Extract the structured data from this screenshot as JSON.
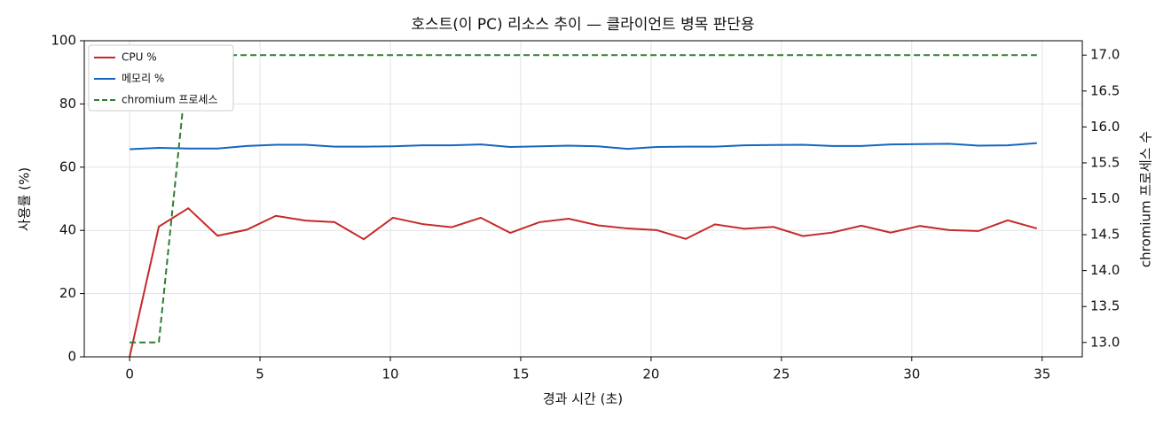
{
  "chart_data": {
    "type": "line",
    "title": "호스트(이 PC) 리소스 추이 — 클라이언트 병목 판단용",
    "xlabel": "경과 시간 (초)",
    "ylabel": "사용률 (%)",
    "y2label": "chromium 프로세스 수",
    "x": [
      0,
      1.12,
      2.25,
      3.37,
      4.49,
      5.61,
      6.74,
      7.86,
      8.98,
      10.1,
      11.23,
      12.35,
      13.47,
      14.6,
      15.72,
      16.84,
      17.96,
      19.09,
      20.21,
      21.33,
      22.45,
      23.58,
      24.7,
      25.82,
      26.94,
      28.07,
      29.19,
      30.31,
      31.43,
      32.56,
      33.68,
      34.8
    ],
    "series": [
      {
        "name": "CPU %",
        "color": "#c62828",
        "linestyle": "solid",
        "values": [
          0,
          41.2,
          47,
          38.3,
          40.2,
          44.6,
          43.1,
          42.6,
          37.2,
          44,
          42,
          41,
          44,
          39.2,
          42.6,
          43.7,
          41.6,
          40.6,
          40.1,
          37.3,
          41.9,
          40.5,
          41.1,
          38.2,
          39.3,
          41.5,
          39.3,
          41.4,
          40.1,
          39.8,
          43.2,
          40.6
        ]
      },
      {
        "name": "메모리 %",
        "color": "#1565c0",
        "linestyle": "solid",
        "values": [
          65.7,
          66.1,
          65.9,
          65.9,
          66.7,
          67.1,
          67.1,
          66.5,
          66.5,
          66.6,
          66.9,
          66.9,
          67.2,
          66.4,
          66.6,
          66.8,
          66.6,
          65.8,
          66.4,
          66.5,
          66.5,
          66.9,
          67,
          67.1,
          66.7,
          66.7,
          67.2,
          67.3,
          67.4,
          66.8,
          66.9,
          67.6
        ]
      },
      {
        "name": "chromium 프로세스",
        "color": "#2e7d32",
        "linestyle": "dashed",
        "axis": "y2",
        "values": [
          13,
          13,
          17,
          17,
          17,
          17,
          17,
          17,
          17,
          17,
          17,
          17,
          17,
          17,
          17,
          17,
          17,
          17,
          17,
          17,
          17,
          17,
          17,
          17,
          17,
          17,
          17,
          17,
          17,
          17,
          17,
          17
        ]
      }
    ],
    "xlim": [
      -1.74,
      36.54
    ],
    "xticks": [
      0,
      5,
      10,
      15,
      20,
      25,
      30,
      35
    ],
    "ylim": [
      0,
      100
    ],
    "yticks": [
      0,
      20,
      40,
      60,
      80,
      100
    ],
    "y2lim": [
      12.8,
      17.2
    ],
    "y2ticks": [
      {
        "value": 13,
        "label": "13.0"
      },
      13.5,
      {
        "value": 14,
        "label": "14.0"
      },
      14.5,
      {
        "value": 15,
        "label": "15.0"
      },
      15.5,
      {
        "value": 16,
        "label": "16.0"
      },
      16.5,
      {
        "value": 17,
        "label": "17.0"
      }
    ],
    "grid": true,
    "legend": "upper left"
  }
}
